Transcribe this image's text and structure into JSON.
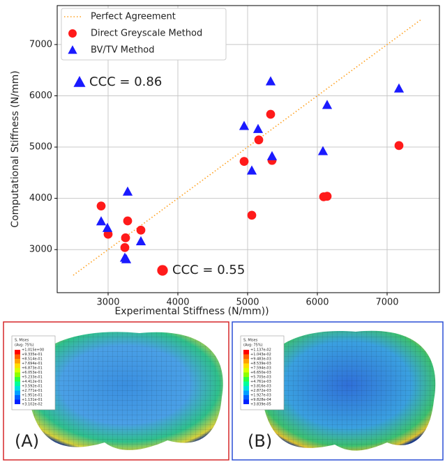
{
  "chart_data": {
    "type": "scatter",
    "xlabel": "Experimental Stiffness (N/mm))",
    "ylabel": "Computational Stiffness (N/mm)",
    "xlim": [
      2270,
      7750
    ],
    "ylim": [
      2160,
      7760
    ],
    "xticks": [
      3000,
      4000,
      5000,
      6000,
      7000
    ],
    "yticks": [
      3000,
      4000,
      5000,
      6000,
      7000
    ],
    "grid": true,
    "legend": "upper left",
    "series": [
      {
        "name": "Perfect Agreement",
        "color": "#ff9f1c",
        "marker": "dotted-line",
        "x": [
          2500,
          7500
        ],
        "values": [
          2500,
          7500
        ]
      },
      {
        "name": "Direct Greyscale Method",
        "color": "#ff1a1a",
        "marker": "circle",
        "x": [
          2900,
          3000,
          3240,
          3250,
          3280,
          3470,
          4950,
          5060,
          5160,
          5330,
          5350,
          6090,
          6140,
          7170
        ],
        "values": [
          3850,
          3300,
          3040,
          3230,
          3560,
          3380,
          4720,
          3670,
          5140,
          5640,
          4740,
          4030,
          4040,
          5030
        ]
      },
      {
        "name": "BV/TV Method",
        "color": "#1a1aff",
        "marker": "triangle",
        "x": [
          2900,
          2990,
          3240,
          3260,
          3280,
          3470,
          4950,
          5060,
          5150,
          5330,
          5350,
          6080,
          6140,
          7170
        ],
        "values": [
          3550,
          3420,
          2840,
          2810,
          4130,
          3160,
          5410,
          4540,
          5350,
          6280,
          4820,
          4920,
          5820,
          6140
        ]
      }
    ],
    "annotations": [
      {
        "text": "CCC = 0.86",
        "series": 2
      },
      {
        "text": "CCC = 0.55",
        "series": 1
      }
    ]
  },
  "panels": [
    {
      "label": "(A)",
      "border_color": "#d62728",
      "legend_title": "S, Mises",
      "legend_subtitle": "(Avg: 75%)",
      "legend_values": [
        "+1.015e+00",
        "+9.335e-01",
        "+8.514e-01",
        "+7.694e-01",
        "+6.873e-01",
        "+6.053e-01",
        "+5.233e-01",
        "+4.412e-01",
        "+3.592e-01",
        "+2.771e-01",
        "+1.951e-01",
        "+1.131e-01",
        "+3.102e-02"
      ]
    },
    {
      "label": "(B)",
      "border_color": "#2a4fd6",
      "legend_title": "S, Mises",
      "legend_subtitle": "(Avg: 75%)",
      "legend_values": [
        "+1.137e-02",
        "+1.043e-02",
        "+9.483e-03",
        "+8.539e-03",
        "+7.594e-03",
        "+6.650e-03",
        "+5.705e-03",
        "+4.761e-03",
        "+3.816e-03",
        "+2.872e-03",
        "+1.927e-03",
        "+9.828e-04",
        "+3.839e-05"
      ]
    }
  ]
}
